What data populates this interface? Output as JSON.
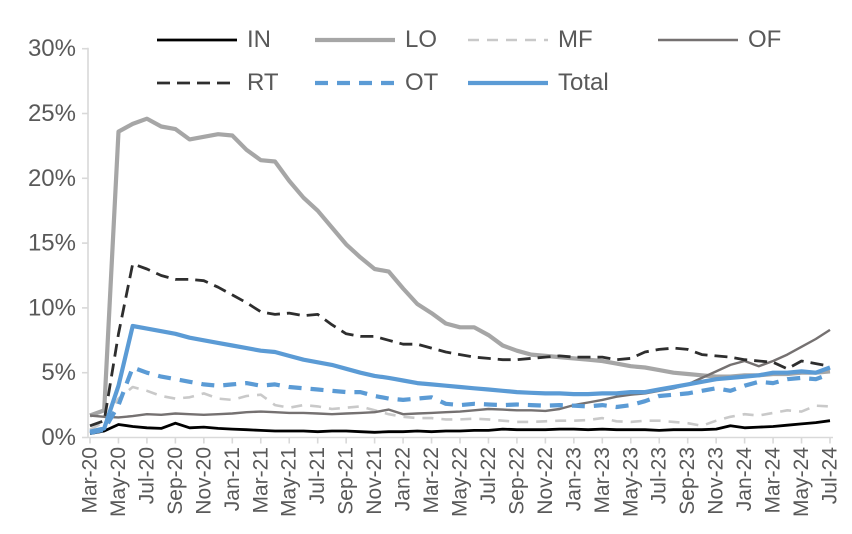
{
  "chart_data": {
    "type": "line",
    "title": "",
    "xlabel": "",
    "ylabel": "",
    "ylim": [
      0,
      30
    ],
    "y_tick_step": 5,
    "y_tick_labels": [
      "0%",
      "5%",
      "10%",
      "15%",
      "20%",
      "25%",
      "30%"
    ],
    "x_tick_every": 2,
    "grid": false,
    "legend_position": "top",
    "axis_color": "#D9D9D9",
    "label_color": "#595959",
    "x": [
      "Mar-20",
      "Apr-20",
      "May-20",
      "Jun-20",
      "Jul-20",
      "Aug-20",
      "Sep-20",
      "Oct-20",
      "Nov-20",
      "Dec-20",
      "Jan-21",
      "Feb-21",
      "Mar-21",
      "Apr-21",
      "May-21",
      "Jun-21",
      "Jul-21",
      "Aug-21",
      "Sep-21",
      "Oct-21",
      "Nov-21",
      "Dec-21",
      "Jan-22",
      "Feb-22",
      "Mar-22",
      "Apr-22",
      "May-22",
      "Jun-22",
      "Jul-22",
      "Aug-22",
      "Sep-22",
      "Oct-22",
      "Nov-22",
      "Dec-22",
      "Jan-23",
      "Feb-23",
      "Mar-23",
      "Apr-23",
      "May-23",
      "Jun-23",
      "Jul-23",
      "Aug-23",
      "Sep-23",
      "Oct-23",
      "Nov-23",
      "Dec-23",
      "Jan-24",
      "Feb-24",
      "Mar-24",
      "Apr-24",
      "May-24",
      "Jun-24",
      "Jul-24"
    ],
    "series": [
      {
        "name": "IN",
        "color": "#000000",
        "dash": "solid",
        "width": 2.8,
        "values": [
          0.3,
          0.5,
          1.0,
          0.85,
          0.75,
          0.7,
          1.1,
          0.75,
          0.8,
          0.7,
          0.65,
          0.6,
          0.55,
          0.5,
          0.5,
          0.5,
          0.45,
          0.5,
          0.5,
          0.45,
          0.4,
          0.45,
          0.45,
          0.5,
          0.45,
          0.5,
          0.5,
          0.55,
          0.55,
          0.65,
          0.6,
          0.6,
          0.6,
          0.65,
          0.65,
          0.6,
          0.65,
          0.6,
          0.6,
          0.6,
          0.55,
          0.6,
          0.6,
          0.6,
          0.65,
          0.9,
          0.75,
          0.8,
          0.85,
          0.95,
          1.05,
          1.15,
          1.3
        ]
      },
      {
        "name": "LO",
        "color": "#A6A6A6",
        "dash": "solid",
        "width": 4.2,
        "values": [
          1.7,
          2.1,
          23.6,
          24.2,
          24.6,
          24.0,
          23.8,
          23.0,
          23.2,
          23.4,
          23.3,
          22.2,
          21.4,
          21.3,
          19.8,
          18.5,
          17.5,
          16.2,
          14.9,
          13.9,
          13.0,
          12.8,
          11.5,
          10.3,
          9.6,
          8.8,
          8.5,
          8.5,
          7.9,
          7.1,
          6.7,
          6.4,
          6.3,
          6.2,
          6.1,
          6.0,
          5.9,
          5.7,
          5.5,
          5.4,
          5.2,
          5.0,
          4.9,
          4.8,
          4.7,
          4.7,
          4.8,
          4.8,
          4.9,
          4.9,
          5.0,
          5.0,
          5.1
        ]
      },
      {
        "name": "MF",
        "color": "#C9C9C9",
        "dash": "dashed",
        "width": 2.6,
        "values": [
          0.6,
          1.2,
          3.0,
          3.9,
          3.6,
          3.2,
          3.0,
          3.1,
          3.4,
          3.0,
          2.9,
          3.2,
          3.3,
          2.5,
          2.3,
          2.5,
          2.4,
          2.2,
          2.3,
          2.4,
          2.1,
          1.8,
          1.6,
          1.5,
          1.5,
          1.4,
          1.4,
          1.45,
          1.4,
          1.3,
          1.2,
          1.2,
          1.25,
          1.3,
          1.3,
          1.35,
          1.5,
          1.25,
          1.2,
          1.3,
          1.3,
          1.2,
          1.1,
          0.9,
          1.3,
          1.6,
          1.8,
          1.7,
          1.9,
          2.1,
          2.0,
          2.45,
          2.4
        ]
      },
      {
        "name": "OF",
        "color": "#757171",
        "dash": "solid",
        "width": 2.4,
        "values": [
          1.7,
          1.6,
          1.55,
          1.65,
          1.8,
          1.75,
          1.85,
          1.8,
          1.75,
          1.8,
          1.85,
          1.95,
          2.0,
          1.95,
          1.9,
          1.9,
          1.85,
          1.8,
          1.85,
          1.9,
          1.95,
          2.15,
          1.8,
          1.85,
          1.9,
          1.95,
          2.0,
          2.1,
          2.2,
          2.15,
          2.1,
          2.1,
          2.05,
          2.2,
          2.5,
          2.7,
          2.9,
          3.15,
          3.3,
          3.4,
          3.6,
          3.8,
          4.1,
          4.6,
          5.1,
          5.6,
          5.9,
          5.5,
          5.9,
          6.4,
          7.0,
          7.6,
          8.3
        ]
      },
      {
        "name": "RT",
        "color": "#2E2E2E",
        "dash": "dashed",
        "width": 2.8,
        "values": [
          0.9,
          1.3,
          8.0,
          13.4,
          13.0,
          12.5,
          12.2,
          12.2,
          12.1,
          11.6,
          11.0,
          10.4,
          9.7,
          9.5,
          9.6,
          9.4,
          9.5,
          8.7,
          8.0,
          7.8,
          7.8,
          7.5,
          7.2,
          7.2,
          6.9,
          6.6,
          6.4,
          6.2,
          6.1,
          6.0,
          6.0,
          6.1,
          6.2,
          6.3,
          6.2,
          6.2,
          6.2,
          6.0,
          6.1,
          6.6,
          6.8,
          6.9,
          6.8,
          6.4,
          6.3,
          6.2,
          6.0,
          5.9,
          5.8,
          5.3,
          5.9,
          5.7,
          5.5
        ]
      },
      {
        "name": "OT",
        "color": "#5B9BD5",
        "dash": "dashed",
        "width": 4.2,
        "values": [
          0.35,
          0.6,
          2.5,
          5.4,
          5.0,
          4.7,
          4.5,
          4.3,
          4.1,
          4.0,
          4.1,
          4.2,
          4.0,
          4.1,
          3.9,
          3.8,
          3.7,
          3.6,
          3.5,
          3.5,
          3.2,
          3.0,
          2.9,
          3.0,
          3.1,
          2.6,
          2.5,
          2.6,
          2.55,
          2.5,
          2.55,
          2.5,
          2.45,
          2.5,
          2.45,
          2.4,
          2.5,
          2.35,
          2.5,
          2.8,
          3.2,
          3.3,
          3.4,
          3.6,
          3.8,
          3.6,
          4.0,
          4.3,
          4.2,
          4.5,
          4.6,
          4.5,
          4.9
        ]
      },
      {
        "name": "Total",
        "color": "#5B9BD5",
        "dash": "solid",
        "width": 4.2,
        "values": [
          0.45,
          0.7,
          4.0,
          8.6,
          8.4,
          8.2,
          8.0,
          7.7,
          7.5,
          7.3,
          7.1,
          6.9,
          6.7,
          6.6,
          6.3,
          6.0,
          5.8,
          5.6,
          5.3,
          5.0,
          4.75,
          4.6,
          4.4,
          4.2,
          4.1,
          4.0,
          3.9,
          3.8,
          3.7,
          3.6,
          3.5,
          3.45,
          3.4,
          3.4,
          3.35,
          3.35,
          3.4,
          3.4,
          3.5,
          3.5,
          3.7,
          3.9,
          4.1,
          4.3,
          4.5,
          4.6,
          4.7,
          4.8,
          5.0,
          5.0,
          5.1,
          5.0,
          5.4
        ]
      }
    ]
  },
  "legend": {
    "rows": [
      [
        "IN",
        "LO",
        "MF",
        "OF"
      ],
      [
        "RT",
        "OT",
        "Total"
      ]
    ]
  }
}
